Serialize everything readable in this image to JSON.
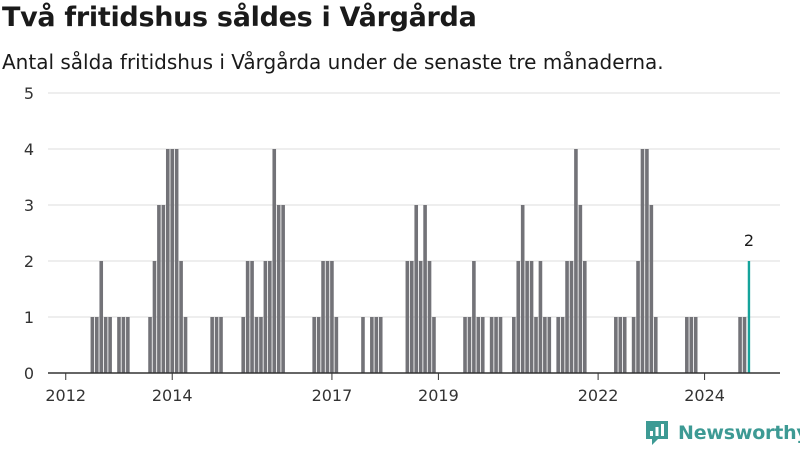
{
  "header": {
    "title": "Två fritidshus såldes i Vårgårda",
    "subtitle": "Antal sålda fritidshus i Vårgårda under de senaste tre månaderna."
  },
  "logo": {
    "text": "Newsworthy",
    "icon": "newsworthy-logo-icon"
  },
  "colors": {
    "bar": "#737378",
    "highlight": "#15a39b",
    "grid": "#dddddd",
    "axis": "#333333"
  },
  "chart_data": {
    "type": "bar",
    "title": "Två fritidshus såldes i Vårgårda",
    "subtitle": "Antal sålda fritidshus i Vårgårda under de senaste tre månaderna.",
    "xlabel": "",
    "ylabel": "",
    "ylim": [
      0,
      5
    ],
    "yticks": [
      0,
      1,
      2,
      3,
      4,
      5
    ],
    "xticks": [
      "2012",
      "2014",
      "2017",
      "2019",
      "2022",
      "2024"
    ],
    "x_range": [
      "2011-09",
      "2025-06"
    ],
    "grid": true,
    "legend": "none",
    "unit_interval": "month",
    "highlight_label": "2",
    "series": [
      {
        "values": [
          {
            "x": "2012-07",
            "y": 1
          },
          {
            "x": "2012-08",
            "y": 1
          },
          {
            "x": "2012-09",
            "y": 2
          },
          {
            "x": "2012-10",
            "y": 1
          },
          {
            "x": "2012-11",
            "y": 1
          },
          {
            "x": "2013-01",
            "y": 1
          },
          {
            "x": "2013-02",
            "y": 1
          },
          {
            "x": "2013-03",
            "y": 1
          },
          {
            "x": "2013-08",
            "y": 1
          },
          {
            "x": "2013-09",
            "y": 2
          },
          {
            "x": "2013-10",
            "y": 3
          },
          {
            "x": "2013-11",
            "y": 3
          },
          {
            "x": "2013-12",
            "y": 4
          },
          {
            "x": "2014-01",
            "y": 4
          },
          {
            "x": "2014-02",
            "y": 4
          },
          {
            "x": "2014-03",
            "y": 2
          },
          {
            "x": "2014-04",
            "y": 1
          },
          {
            "x": "2014-10",
            "y": 1
          },
          {
            "x": "2014-11",
            "y": 1
          },
          {
            "x": "2014-12",
            "y": 1
          },
          {
            "x": "2015-05",
            "y": 1
          },
          {
            "x": "2015-06",
            "y": 2
          },
          {
            "x": "2015-07",
            "y": 2
          },
          {
            "x": "2015-08",
            "y": 1
          },
          {
            "x": "2015-09",
            "y": 1
          },
          {
            "x": "2015-10",
            "y": 2
          },
          {
            "x": "2015-11",
            "y": 2
          },
          {
            "x": "2015-12",
            "y": 4
          },
          {
            "x": "2016-01",
            "y": 3
          },
          {
            "x": "2016-02",
            "y": 3
          },
          {
            "x": "2016-09",
            "y": 1
          },
          {
            "x": "2016-10",
            "y": 1
          },
          {
            "x": "2016-11",
            "y": 2
          },
          {
            "x": "2016-12",
            "y": 2
          },
          {
            "x": "2017-01",
            "y": 2
          },
          {
            "x": "2017-02",
            "y": 1
          },
          {
            "x": "2017-08",
            "y": 1
          },
          {
            "x": "2017-10",
            "y": 1
          },
          {
            "x": "2017-11",
            "y": 1
          },
          {
            "x": "2017-12",
            "y": 1
          },
          {
            "x": "2018-06",
            "y": 2
          },
          {
            "x": "2018-07",
            "y": 2
          },
          {
            "x": "2018-08",
            "y": 3
          },
          {
            "x": "2018-09",
            "y": 2
          },
          {
            "x": "2018-10",
            "y": 3
          },
          {
            "x": "2018-11",
            "y": 2
          },
          {
            "x": "2018-12",
            "y": 1
          },
          {
            "x": "2019-07",
            "y": 1
          },
          {
            "x": "2019-08",
            "y": 1
          },
          {
            "x": "2019-09",
            "y": 2
          },
          {
            "x": "2019-10",
            "y": 1
          },
          {
            "x": "2019-11",
            "y": 1
          },
          {
            "x": "2020-01",
            "y": 1
          },
          {
            "x": "2020-02",
            "y": 1
          },
          {
            "x": "2020-03",
            "y": 1
          },
          {
            "x": "2020-06",
            "y": 1
          },
          {
            "x": "2020-07",
            "y": 2
          },
          {
            "x": "2020-08",
            "y": 3
          },
          {
            "x": "2020-09",
            "y": 2
          },
          {
            "x": "2020-10",
            "y": 2
          },
          {
            "x": "2020-11",
            "y": 1
          },
          {
            "x": "2020-12",
            "y": 2
          },
          {
            "x": "2021-01",
            "y": 1
          },
          {
            "x": "2021-02",
            "y": 1
          },
          {
            "x": "2021-04",
            "y": 1
          },
          {
            "x": "2021-05",
            "y": 1
          },
          {
            "x": "2021-06",
            "y": 2
          },
          {
            "x": "2021-07",
            "y": 2
          },
          {
            "x": "2021-08",
            "y": 4
          },
          {
            "x": "2021-09",
            "y": 3
          },
          {
            "x": "2021-10",
            "y": 2
          },
          {
            "x": "2022-05",
            "y": 1
          },
          {
            "x": "2022-06",
            "y": 1
          },
          {
            "x": "2022-07",
            "y": 1
          },
          {
            "x": "2022-09",
            "y": 1
          },
          {
            "x": "2022-10",
            "y": 2
          },
          {
            "x": "2022-11",
            "y": 4
          },
          {
            "x": "2022-12",
            "y": 4
          },
          {
            "x": "2023-01",
            "y": 3
          },
          {
            "x": "2023-02",
            "y": 1
          },
          {
            "x": "2023-09",
            "y": 1
          },
          {
            "x": "2023-10",
            "y": 1
          },
          {
            "x": "2023-11",
            "y": 1
          },
          {
            "x": "2024-09",
            "y": 1
          },
          {
            "x": "2024-10",
            "y": 1
          },
          {
            "x": "2024-11",
            "y": 2,
            "highlight": true
          }
        ]
      }
    ]
  }
}
